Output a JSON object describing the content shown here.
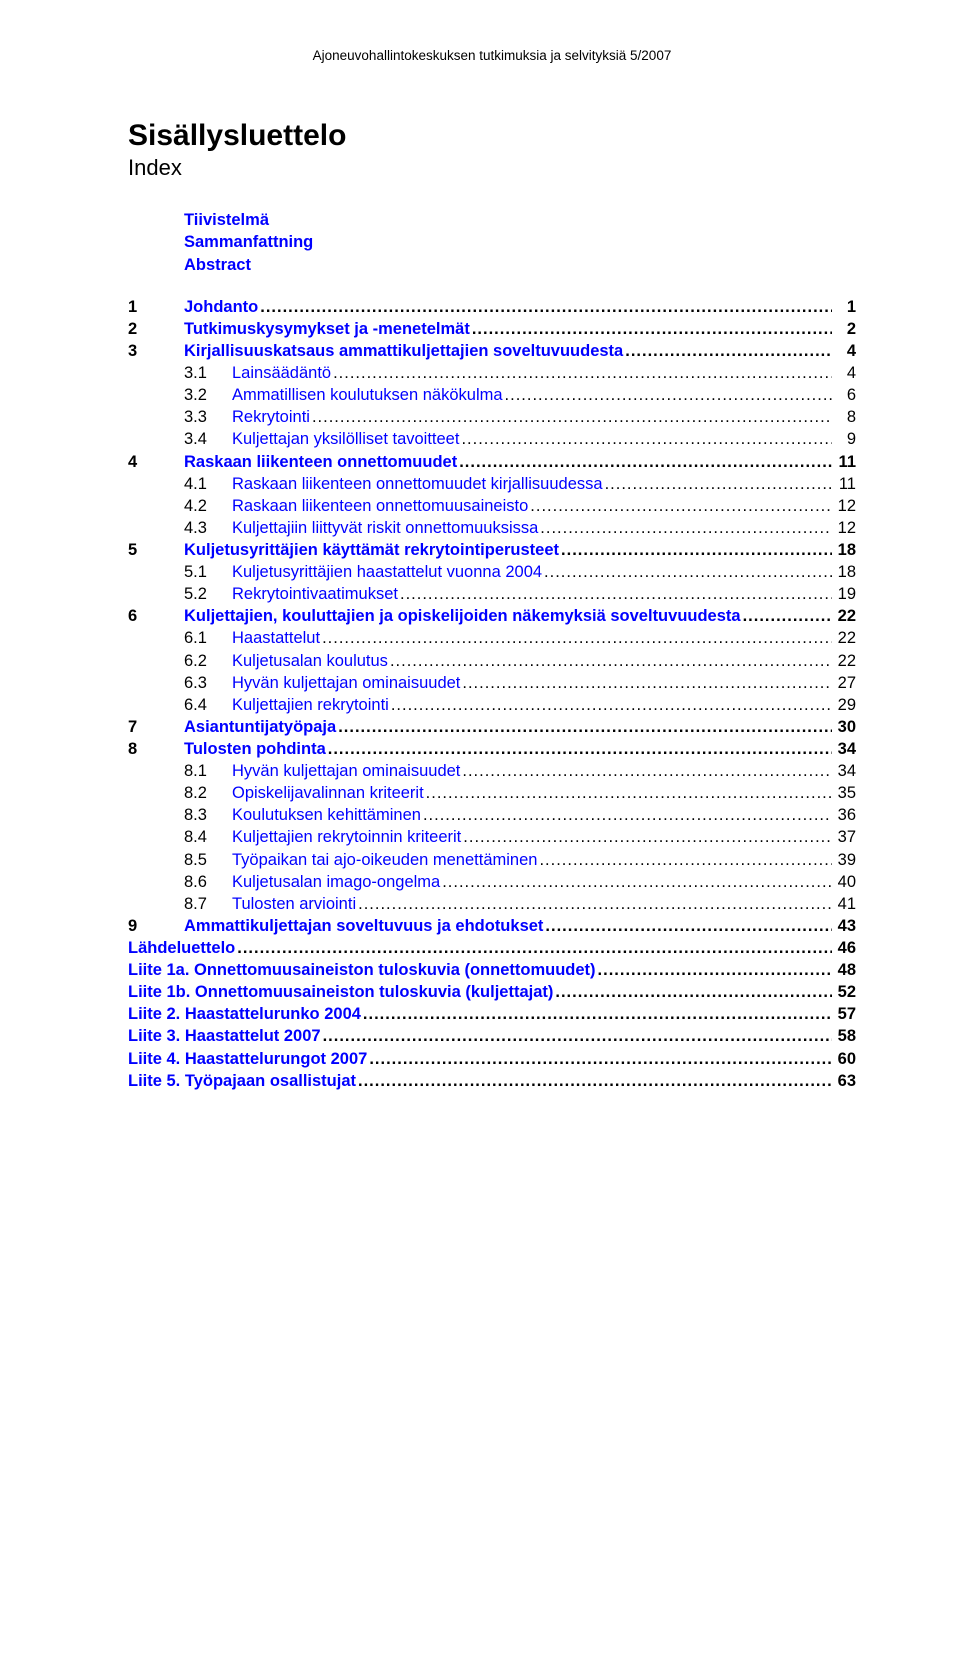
{
  "header": "Ajoneuvohallintokeskuksen tutkimuksia ja selvityksiä 5/2007",
  "title": "Sisällysluettelo",
  "subtitle": "Index",
  "front_matter": [
    "Tiivistelmä",
    "Sammanfattning",
    "Abstract"
  ],
  "toc": [
    {
      "level": 1,
      "num": "1",
      "label": "Johdanto",
      "page": "1",
      "link": true
    },
    {
      "level": 1,
      "num": "2",
      "label": "Tutkimuskysymykset ja -menetelmät",
      "page": "2",
      "link": true
    },
    {
      "level": 1,
      "num": "3",
      "label": "Kirjallisuuskatsaus ammattikuljettajien soveltuvuudesta",
      "page": "4",
      "link": true
    },
    {
      "level": 2,
      "num": "3.1",
      "label": "Lainsäädäntö",
      "page": "4",
      "link": true
    },
    {
      "level": 2,
      "num": "3.2",
      "label": "Ammatillisen koulutuksen näkökulma",
      "page": "6",
      "link": true
    },
    {
      "level": 2,
      "num": "3.3",
      "label": "Rekrytointi",
      "page": "8",
      "link": true
    },
    {
      "level": 2,
      "num": "3.4",
      "label": "Kuljettajan yksilölliset tavoitteet",
      "page": "9",
      "link": true
    },
    {
      "level": 1,
      "num": "4",
      "label": "Raskaan liikenteen onnettomuudet",
      "page": "11",
      "link": true
    },
    {
      "level": 2,
      "num": "4.1",
      "label": "Raskaan liikenteen onnettomuudet kirjallisuudessa",
      "page": "11",
      "link": true
    },
    {
      "level": 2,
      "num": "4.2",
      "label": "Raskaan liikenteen onnettomuusaineisto",
      "page": "12",
      "link": true
    },
    {
      "level": 2,
      "num": "4.3",
      "label": "Kuljettajiin liittyvät riskit onnettomuuksissa",
      "page": "12",
      "link": true
    },
    {
      "level": 1,
      "num": "5",
      "label": "Kuljetusyrittäjien käyttämät rekrytointiperusteet",
      "page": "18",
      "link": true
    },
    {
      "level": 2,
      "num": "5.1",
      "label": "Kuljetusyrittäjien haastattelut vuonna 2004",
      "page": "18",
      "link": true
    },
    {
      "level": 2,
      "num": "5.2",
      "label": "Rekrytointivaatimukset",
      "page": "19",
      "link": true
    },
    {
      "level": 1,
      "num": "6",
      "label": "Kuljettajien, kouluttajien ja opiskelijoiden näkemyksiä soveltuvuudesta",
      "page": "22",
      "link": true
    },
    {
      "level": 2,
      "num": "6.1",
      "label": "Haastattelut",
      "page": "22",
      "link": true
    },
    {
      "level": 2,
      "num": "6.2",
      "label": "Kuljetusalan koulutus",
      "page": "22",
      "link": true
    },
    {
      "level": 2,
      "num": "6.3",
      "label": "Hyvän kuljettajan ominaisuudet",
      "page": "27",
      "link": true
    },
    {
      "level": 2,
      "num": "6.4",
      "label": "Kuljettajien rekrytointi",
      "page": "29",
      "link": true
    },
    {
      "level": 1,
      "num": "7",
      "label": "Asiantuntijatyöpaja",
      "page": "30",
      "link": true
    },
    {
      "level": 1,
      "num": "8",
      "label": "Tulosten pohdinta",
      "page": "34",
      "link": true
    },
    {
      "level": 2,
      "num": "8.1",
      "label": "Hyvän kuljettajan ominaisuudet",
      "page": "34",
      "link": true
    },
    {
      "level": 2,
      "num": "8.2",
      "label": "Opiskelijavalinnan kriteerit",
      "page": "35",
      "link": true
    },
    {
      "level": 2,
      "num": "8.3",
      "label": "Koulutuksen kehittäminen",
      "page": "36",
      "link": true
    },
    {
      "level": 2,
      "num": "8.4",
      "label": "Kuljettajien rekrytoinnin kriteerit",
      "page": "37",
      "link": true
    },
    {
      "level": 2,
      "num": "8.5",
      "label": "Työpaikan tai ajo-oikeuden menettäminen",
      "page": "39",
      "link": true
    },
    {
      "level": 2,
      "num": "8.6",
      "label": "Kuljetusalan imago-ongelma",
      "page": "40",
      "link": true
    },
    {
      "level": 2,
      "num": "8.7",
      "label": "Tulosten arviointi",
      "page": "41",
      "link": true
    },
    {
      "level": 1,
      "num": "9",
      "label": "Ammattikuljettajan soveltuvuus ja ehdotukset",
      "page": "43",
      "link": true
    },
    {
      "level": 1,
      "num": "",
      "label": "Lähdeluettelo",
      "page": "46",
      "link": true,
      "nonum": true
    },
    {
      "level": 1,
      "num": "",
      "label": "Liite 1a. Onnettomuusaineiston tuloskuvia (onnettomuudet)",
      "page": "48",
      "link": true,
      "nonum": true
    },
    {
      "level": 1,
      "num": "",
      "label": "Liite 1b. Onnettomuusaineiston tuloskuvia (kuljettajat)",
      "page": "52",
      "link": true,
      "nonum": true
    },
    {
      "level": 1,
      "num": "",
      "label": "Liite 2. Haastattelurunko 2004",
      "page": "57",
      "link": true,
      "nonum": true
    },
    {
      "level": 1,
      "num": "",
      "label": "Liite 3. Haastattelut 2007",
      "page": "58",
      "link": true,
      "nonum": true
    },
    {
      "level": 1,
      "num": "",
      "label": "Liite 4. Haastattelurungot 2007",
      "page": "60",
      "link": true,
      "nonum": true
    },
    {
      "level": 1,
      "num": "",
      "label": "Liite 5. Työpajaan osallistujat",
      "page": "63",
      "link": true,
      "nonum": true
    }
  ],
  "colors": {
    "link": "#0000ff",
    "text": "#000000",
    "background": "#ffffff"
  },
  "typography": {
    "body_fontsize_pt": 12,
    "title_fontsize_pt": 22,
    "subtitle_fontsize_pt": 16,
    "font_family": "Arial"
  }
}
